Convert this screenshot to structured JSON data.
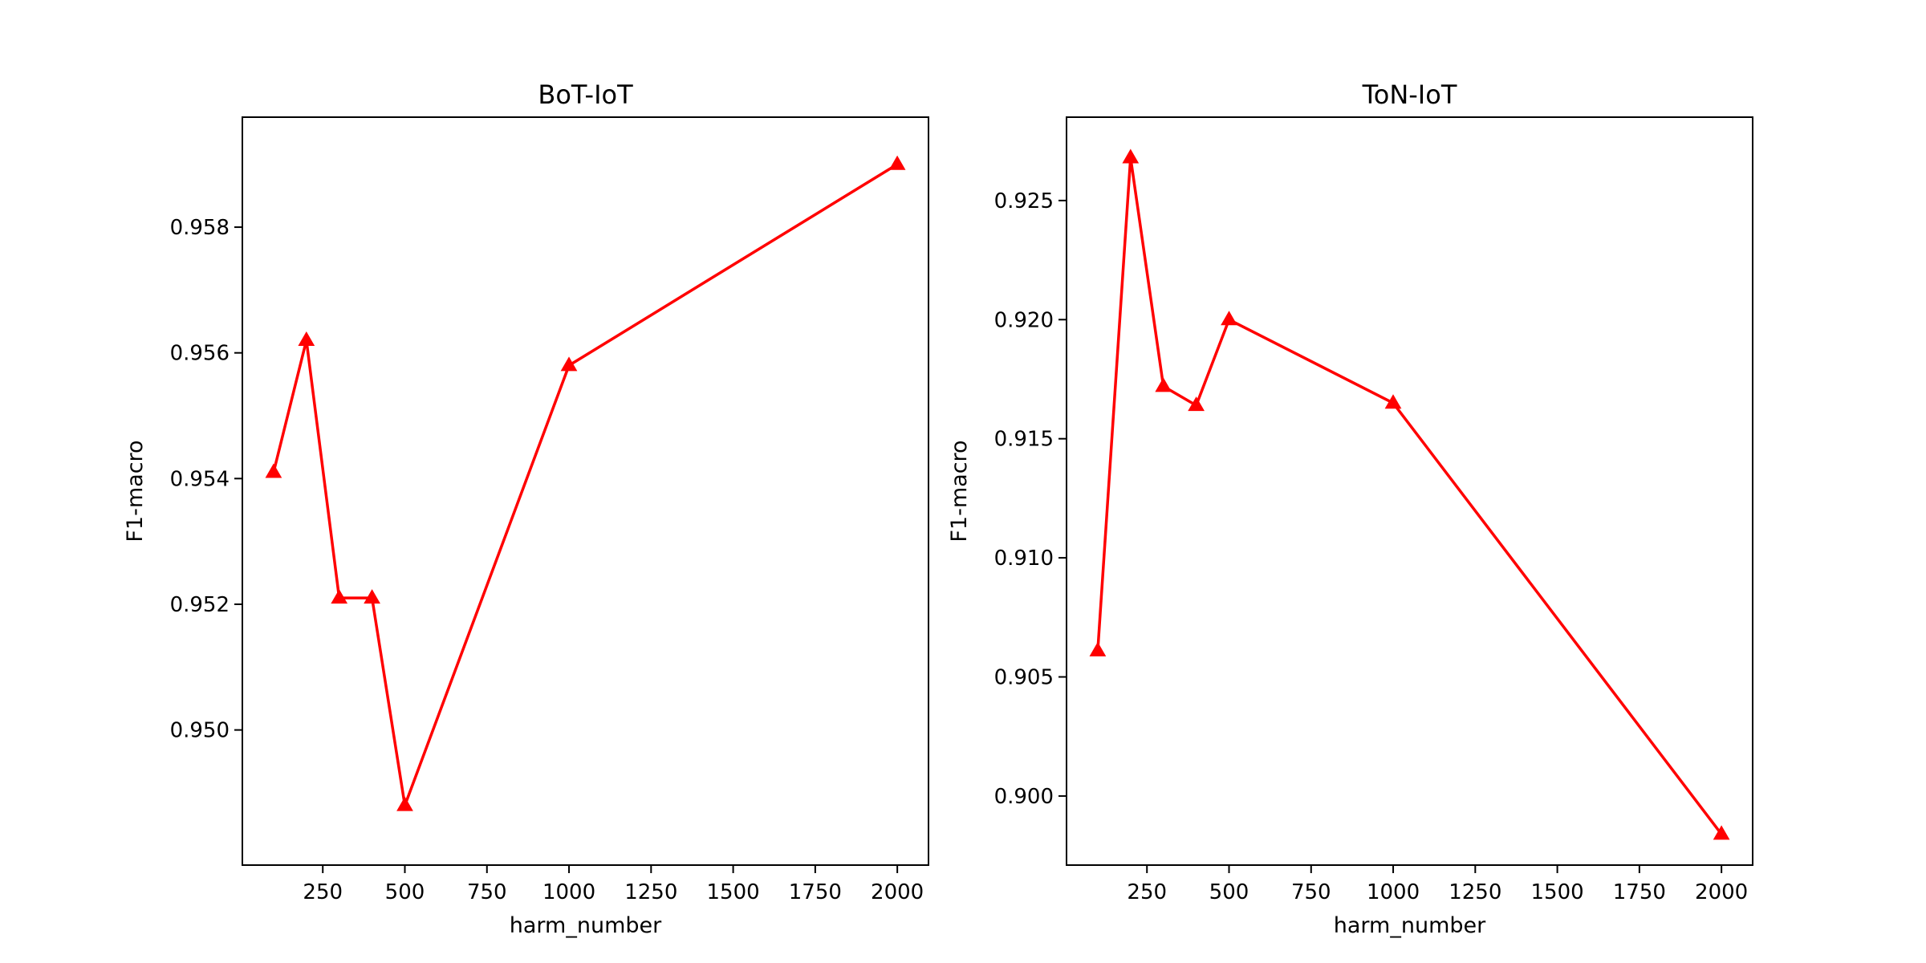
{
  "chart_data": [
    {
      "type": "line",
      "title": "BoT-IoT",
      "xlabel": "harm_number",
      "ylabel": "F1-macro",
      "grid": false,
      "xlim": [
        5,
        2095
      ],
      "ylim": [
        0.94785,
        0.95975
      ],
      "xticks": [
        250,
        500,
        750,
        1000,
        1250,
        1500,
        1750,
        2000
      ],
      "yticks": [
        0.95,
        0.952,
        0.954,
        0.956,
        0.958
      ],
      "ytick_decimals": 3,
      "marker": "triangle-up",
      "color": "#ff0000",
      "series": [
        {
          "x": [
            100,
            200,
            300,
            400,
            500,
            1000,
            2000
          ],
          "values": [
            0.9541,
            0.9562,
            0.9521,
            0.9521,
            0.9488,
            0.9558,
            0.959
          ]
        }
      ]
    },
    {
      "type": "line",
      "title": "ToN-IoT",
      "xlabel": "harm_number",
      "ylabel": "F1-macro",
      "grid": false,
      "xlim": [
        5,
        2095
      ],
      "ylim": [
        0.8971,
        0.9285
      ],
      "xticks": [
        250,
        500,
        750,
        1000,
        1250,
        1500,
        1750,
        2000
      ],
      "yticks": [
        0.9,
        0.905,
        0.91,
        0.915,
        0.92,
        0.925
      ],
      "ytick_decimals": 3,
      "marker": "triangle-up",
      "color": "#ff0000",
      "series": [
        {
          "x": [
            100,
            200,
            300,
            400,
            500,
            1000,
            2000
          ],
          "values": [
            0.9061,
            0.9268,
            0.9172,
            0.9164,
            0.92,
            0.9165,
            0.8984
          ]
        }
      ]
    }
  ]
}
